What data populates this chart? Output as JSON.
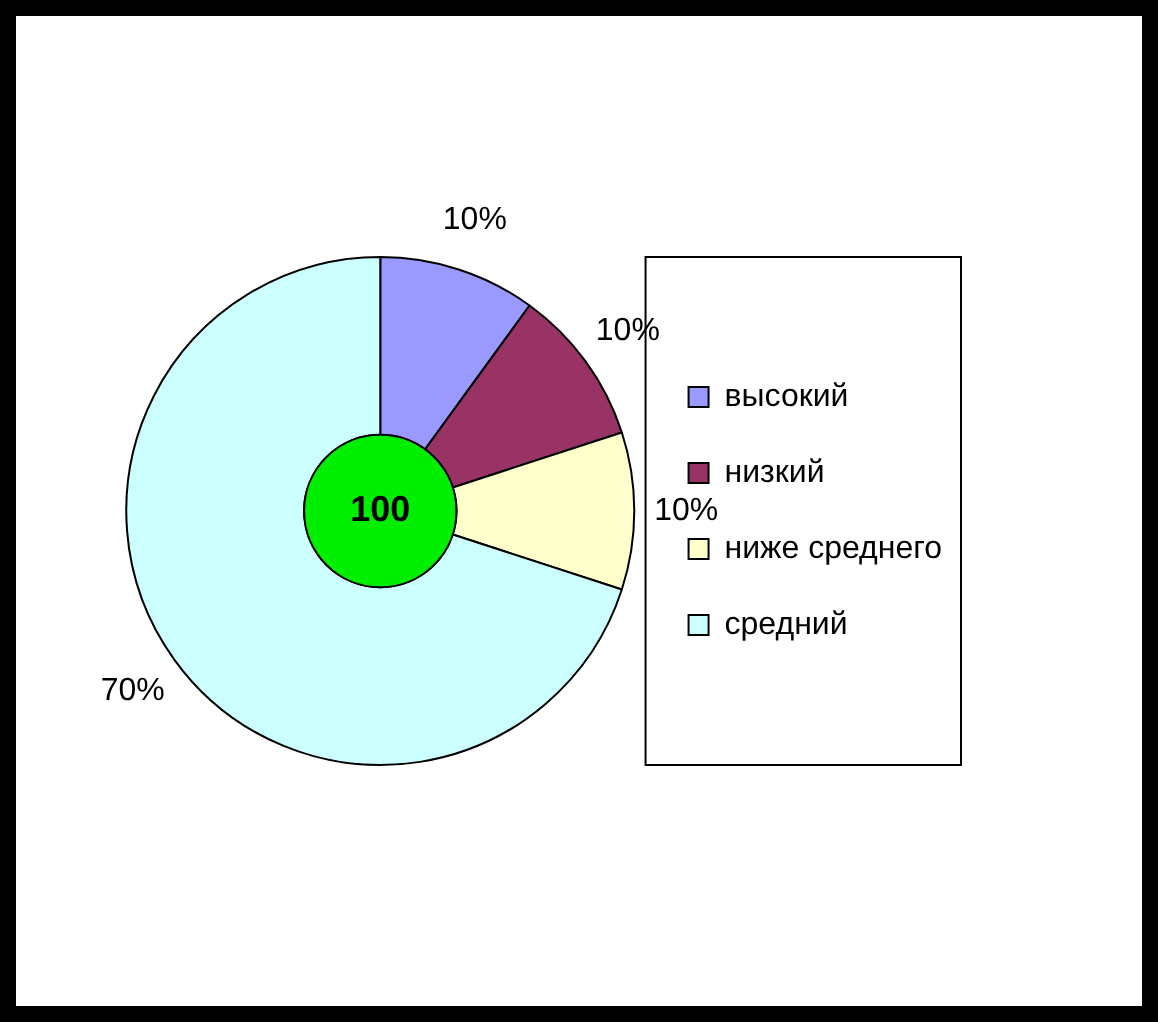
{
  "chart_data": {
    "type": "donut",
    "categories": [
      "высокий",
      "низкий",
      "ниже среднего",
      "средний"
    ],
    "values": [
      10,
      10,
      10,
      70
    ],
    "value_labels": [
      "10%",
      "10%",
      "10%",
      "70%"
    ],
    "colors": [
      "#9999ff",
      "#993366",
      "#ffffcc",
      "#ccffff"
    ],
    "annotations": [
      "100"
    ],
    "legend": "right"
  }
}
